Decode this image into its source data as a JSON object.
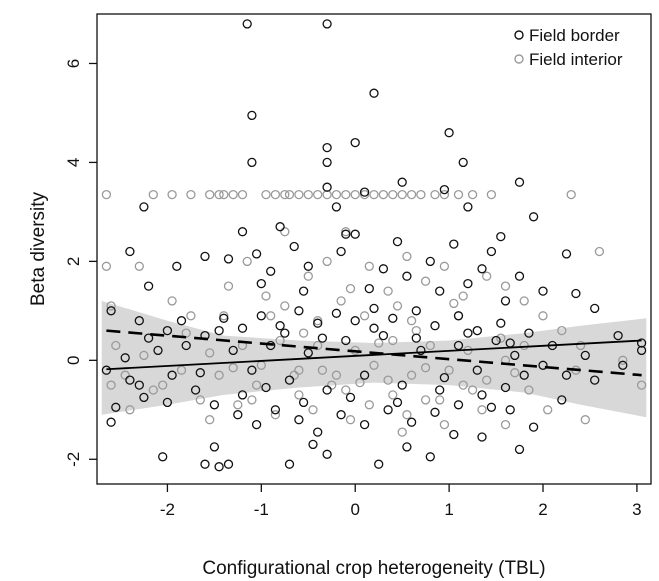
{
  "chart_data": {
    "type": "scatter",
    "title": "",
    "xlabel": "Configurational crop heterogeneity (TBL)",
    "ylabel": "Beta diversity",
    "xlim": [
      -2.75,
      3.15
    ],
    "ylim": [
      -2.5,
      7.0
    ],
    "x_ticks": [
      "-2",
      "-1",
      "0",
      "1",
      "2",
      "3"
    ],
    "y_ticks": [
      "-2",
      "0",
      "2",
      "4",
      "6"
    ],
    "legend": {
      "placement": "top-right",
      "entries": [
        {
          "label": "Field border",
          "color": "#111111"
        },
        {
          "label": "Field interior",
          "color": "#9a9a9a"
        }
      ]
    },
    "series": [
      {
        "name": "Field border",
        "color": "#111111",
        "fit_line": {
          "style": "solid",
          "x": [
            -2.65,
            3.05
          ],
          "y": [
            -0.18,
            0.4
          ]
        },
        "points": [
          [
            -1.15,
            6.8
          ],
          [
            -0.3,
            6.8
          ],
          [
            0.2,
            5.4
          ],
          [
            -1.1,
            4.95
          ],
          [
            1.0,
            4.6
          ],
          [
            0.0,
            4.4
          ],
          [
            -0.3,
            4.3
          ],
          [
            -1.1,
            4.0
          ],
          [
            -0.3,
            4.0
          ],
          [
            1.15,
            4.0
          ],
          [
            1.75,
            3.6
          ],
          [
            0.5,
            3.6
          ],
          [
            -0.3,
            3.5
          ],
          [
            0.1,
            3.4
          ],
          [
            0.95,
            3.45
          ],
          [
            1.2,
            3.1
          ],
          [
            -2.25,
            3.1
          ],
          [
            -1.2,
            2.6
          ],
          [
            -0.8,
            2.7
          ],
          [
            -0.1,
            2.55
          ],
          [
            0.0,
            2.55
          ],
          [
            1.55,
            2.5
          ],
          [
            1.9,
            2.9
          ],
          [
            2.25,
            2.15
          ],
          [
            -2.4,
            2.2
          ],
          [
            -1.35,
            2.05
          ],
          [
            -1.05,
            2.15
          ],
          [
            -0.15,
            2.2
          ],
          [
            0.8,
            2.0
          ],
          [
            1.05,
            2.35
          ],
          [
            -0.5,
            1.9
          ],
          [
            0.3,
            1.85
          ],
          [
            1.35,
            1.85
          ],
          [
            1.75,
            1.7
          ],
          [
            -1.9,
            1.9
          ],
          [
            -1.6,
            2.1
          ],
          [
            -0.9,
            1.8
          ],
          [
            0.55,
            1.7
          ],
          [
            1.2,
            1.55
          ],
          [
            2.0,
            1.4
          ],
          [
            -2.2,
            1.5
          ],
          [
            -1.0,
            1.55
          ],
          [
            -0.55,
            1.4
          ],
          [
            0.15,
            1.45
          ],
          [
            0.9,
            1.4
          ],
          [
            1.6,
            1.2
          ],
          [
            2.35,
            1.35
          ],
          [
            3.05,
            0.35
          ],
          [
            2.55,
            1.05
          ],
          [
            2.8,
            0.5
          ],
          [
            -2.6,
            1.0
          ],
          [
            -2.3,
            0.8
          ],
          [
            -2.0,
            0.6
          ],
          [
            -2.55,
            -0.95
          ],
          [
            -2.6,
            -1.25
          ],
          [
            -2.25,
            -0.75
          ],
          [
            -2.05,
            -1.95
          ],
          [
            -1.6,
            -2.1
          ],
          [
            -1.45,
            -2.15
          ],
          [
            -1.35,
            -2.1
          ],
          [
            -1.5,
            -1.75
          ],
          [
            -0.7,
            -2.1
          ],
          [
            -0.3,
            -1.9
          ],
          [
            -0.45,
            -1.7
          ],
          [
            0.25,
            -2.1
          ],
          [
            0.8,
            -1.95
          ],
          [
            0.55,
            -1.75
          ],
          [
            1.05,
            -1.5
          ],
          [
            1.35,
            -1.55
          ],
          [
            1.75,
            -1.8
          ],
          [
            1.9,
            -1.35
          ],
          [
            1.65,
            -1.0
          ],
          [
            2.2,
            -0.8
          ],
          [
            2.55,
            -0.4
          ],
          [
            3.05,
            0.2
          ],
          [
            2.85,
            -0.1
          ],
          [
            2.45,
            0.1
          ],
          [
            2.1,
            0.3
          ],
          [
            1.85,
            0.55
          ],
          [
            1.55,
            0.75
          ],
          [
            1.3,
            0.6
          ],
          [
            1.1,
            0.9
          ],
          [
            0.85,
            0.7
          ],
          [
            0.65,
            1.0
          ],
          [
            0.4,
            0.85
          ],
          [
            0.2,
            1.05
          ],
          [
            0.0,
            0.8
          ],
          [
            -0.2,
            0.95
          ],
          [
            -0.4,
            0.75
          ],
          [
            -0.6,
            1.0
          ],
          [
            -0.8,
            0.7
          ],
          [
            -1.0,
            0.9
          ],
          [
            -1.2,
            0.65
          ],
          [
            -1.4,
            0.85
          ],
          [
            -1.6,
            0.5
          ],
          [
            -1.8,
            0.3
          ],
          [
            -2.1,
            0.2
          ],
          [
            -2.45,
            0.05
          ],
          [
            -2.65,
            -0.2
          ],
          [
            -2.3,
            -0.5
          ],
          [
            -1.95,
            -0.3
          ],
          [
            -1.7,
            -0.6
          ],
          [
            -1.5,
            -0.9
          ],
          [
            -1.25,
            -1.1
          ],
          [
            -1.05,
            -1.3
          ],
          [
            -0.85,
            -1.0
          ],
          [
            -0.6,
            -1.2
          ],
          [
            -0.4,
            -1.45
          ],
          [
            -0.15,
            -1.1
          ],
          [
            0.1,
            -1.3
          ],
          [
            0.35,
            -1.0
          ],
          [
            0.6,
            -1.25
          ],
          [
            0.85,
            -1.05
          ],
          [
            1.1,
            -0.9
          ],
          [
            1.35,
            -0.7
          ],
          [
            1.6,
            -0.55
          ],
          [
            1.8,
            -0.3
          ],
          [
            2.0,
            -0.1
          ],
          [
            2.25,
            -0.3
          ],
          [
            -1.3,
            0.2
          ],
          [
            -1.1,
            -0.2
          ],
          [
            -0.9,
            0.3
          ],
          [
            -0.7,
            -0.4
          ],
          [
            -0.5,
            0.15
          ],
          [
            -0.3,
            -0.6
          ],
          [
            -0.1,
            0.4
          ],
          [
            0.1,
            -0.3
          ],
          [
            0.3,
            0.5
          ],
          [
            0.5,
            -0.5
          ],
          [
            0.7,
            0.2
          ],
          [
            0.9,
            -0.6
          ],
          [
            1.1,
            0.3
          ],
          [
            1.3,
            -0.2
          ],
          [
            1.5,
            0.4
          ],
          [
            1.7,
            0.1
          ],
          [
            -1.45,
            0.6
          ],
          [
            -1.2,
            -0.7
          ],
          [
            -0.95,
            -0.55
          ],
          [
            -0.75,
            0.55
          ],
          [
            -0.55,
            -0.85
          ],
          [
            -0.35,
            0.45
          ],
          [
            -0.05,
            -0.75
          ],
          [
            0.2,
            0.65
          ],
          [
            0.45,
            -0.85
          ],
          [
            0.65,
            0.45
          ],
          [
            0.95,
            -0.35
          ],
          [
            1.2,
            0.55
          ],
          [
            1.45,
            -0.95
          ],
          [
            1.65,
            0.35
          ],
          [
            -1.65,
            -0.25
          ],
          [
            -1.85,
            0.8
          ],
          [
            -2.0,
            -0.85
          ],
          [
            -2.2,
            0.45
          ],
          [
            -2.4,
            -0.4
          ],
          [
            -0.65,
            2.3
          ],
          [
            0.45,
            2.4
          ],
          [
            -0.2,
            3.1
          ],
          [
            1.45,
            2.2
          ]
        ]
      },
      {
        "name": "Field interior",
        "color": "#9a9a9a",
        "fit_line": {
          "style": "dashed",
          "x": [
            -2.65,
            3.05
          ],
          "y": [
            0.6,
            -0.3
          ]
        },
        "points": [
          [
            -2.65,
            3.35
          ],
          [
            -2.15,
            3.35
          ],
          [
            -1.95,
            3.35
          ],
          [
            -1.75,
            3.35
          ],
          [
            -1.55,
            3.35
          ],
          [
            -1.45,
            3.35
          ],
          [
            -1.4,
            3.35
          ],
          [
            -1.3,
            3.35
          ],
          [
            -1.2,
            3.35
          ],
          [
            -0.95,
            3.35
          ],
          [
            -0.85,
            3.35
          ],
          [
            -0.75,
            3.35
          ],
          [
            -0.7,
            3.35
          ],
          [
            -0.6,
            3.35
          ],
          [
            -0.5,
            3.35
          ],
          [
            -0.4,
            3.35
          ],
          [
            -0.3,
            3.35
          ],
          [
            -0.2,
            3.35
          ],
          [
            -0.1,
            3.35
          ],
          [
            0.0,
            3.35
          ],
          [
            0.1,
            3.35
          ],
          [
            0.2,
            3.35
          ],
          [
            0.3,
            3.35
          ],
          [
            0.4,
            3.35
          ],
          [
            0.5,
            3.35
          ],
          [
            0.6,
            3.35
          ],
          [
            0.7,
            3.35
          ],
          [
            0.85,
            3.35
          ],
          [
            0.95,
            3.35
          ],
          [
            1.1,
            3.35
          ],
          [
            1.25,
            3.35
          ],
          [
            1.45,
            3.35
          ],
          [
            2.3,
            3.35
          ],
          [
            -2.65,
            1.9
          ],
          [
            -2.3,
            1.9
          ],
          [
            -2.6,
            1.1
          ],
          [
            -2.55,
            0.3
          ],
          [
            -2.6,
            -0.5
          ],
          [
            -2.4,
            -1.0
          ],
          [
            -2.15,
            -0.6
          ],
          [
            -1.95,
            1.2
          ],
          [
            -1.75,
            0.9
          ],
          [
            -1.55,
            -1.2
          ],
          [
            -1.35,
            1.5
          ],
          [
            -1.15,
            2.0
          ],
          [
            -0.95,
            1.3
          ],
          [
            -0.75,
            2.6
          ],
          [
            -0.5,
            1.7
          ],
          [
            -0.3,
            2.0
          ],
          [
            -0.1,
            2.6
          ],
          [
            0.15,
            1.9
          ],
          [
            0.35,
            1.4
          ],
          [
            0.55,
            2.1
          ],
          [
            0.75,
            1.6
          ],
          [
            0.95,
            1.9
          ],
          [
            1.15,
            1.3
          ],
          [
            1.4,
            1.7
          ],
          [
            1.6,
            1.5
          ],
          [
            1.8,
            1.2
          ],
          [
            2.0,
            0.9
          ],
          [
            2.2,
            0.6
          ],
          [
            2.4,
            0.3
          ],
          [
            2.6,
            2.2
          ],
          [
            2.85,
            0.0
          ],
          [
            3.05,
            -0.5
          ],
          [
            2.35,
            -0.2
          ],
          [
            2.45,
            -1.2
          ],
          [
            2.05,
            -1.0
          ],
          [
            1.85,
            -0.6
          ],
          [
            1.6,
            -1.3
          ],
          [
            1.35,
            -1.0
          ],
          [
            1.15,
            -0.5
          ],
          [
            0.95,
            -1.3
          ],
          [
            0.75,
            -0.8
          ],
          [
            0.55,
            -1.1
          ],
          [
            0.35,
            -0.4
          ],
          [
            0.15,
            -0.9
          ],
          [
            -0.05,
            -1.2
          ],
          [
            -0.25,
            -0.5
          ],
          [
            -0.45,
            -1.0
          ],
          [
            -0.65,
            -0.3
          ],
          [
            -0.85,
            -1.1
          ],
          [
            -1.05,
            -0.5
          ],
          [
            -1.25,
            -0.9
          ],
          [
            -1.45,
            -0.3
          ],
          [
            -1.65,
            -0.8
          ],
          [
            -1.85,
            -0.2
          ],
          [
            -2.05,
            -0.5
          ],
          [
            -2.25,
            0.1
          ],
          [
            -2.45,
            -0.3
          ],
          [
            -1.2,
            0.3
          ],
          [
            -1.0,
            -0.1
          ],
          [
            -0.8,
            0.4
          ],
          [
            -0.6,
            -0.2
          ],
          [
            -0.4,
            0.3
          ],
          [
            -0.2,
            -0.3
          ],
          [
            0.0,
            0.2
          ],
          [
            0.2,
            -0.1
          ],
          [
            0.4,
            0.4
          ],
          [
            0.6,
            -0.3
          ],
          [
            0.8,
            0.3
          ],
          [
            1.0,
            -0.2
          ],
          [
            1.2,
            0.2
          ],
          [
            1.4,
            -0.4
          ],
          [
            1.6,
            0.0
          ],
          [
            1.8,
            0.3
          ],
          [
            -1.4,
            0.9
          ],
          [
            -0.9,
            0.9
          ],
          [
            -0.4,
            0.8
          ],
          [
            0.1,
            0.9
          ],
          [
            0.6,
            0.8
          ],
          [
            1.1,
            0.9
          ],
          [
            -1.1,
            -0.8
          ],
          [
            -0.6,
            -0.7
          ],
          [
            -0.1,
            -0.6
          ],
          [
            0.4,
            -0.7
          ],
          [
            0.9,
            -0.8
          ],
          [
            1.3,
            0.6
          ],
          [
            -0.75,
            1.1
          ],
          [
            -0.15,
            1.2
          ],
          [
            0.45,
            1.1
          ],
          [
            1.05,
            1.15
          ],
          [
            -1.3,
            -0.15
          ],
          [
            -0.35,
            -0.2
          ],
          [
            0.25,
            0.35
          ],
          [
            0.75,
            -0.15
          ],
          [
            1.55,
            0.45
          ],
          [
            -0.55,
            0.55
          ],
          [
            0.05,
            -0.45
          ],
          [
            0.65,
            0.6
          ],
          [
            1.25,
            -0.6
          ],
          [
            -1.55,
            0.15
          ],
          [
            -0.05,
            1.45
          ],
          [
            0.5,
            -1.45
          ],
          [
            1.7,
            -0.25
          ],
          [
            -1.8,
            0.55
          ]
        ]
      }
    ],
    "confidence_band": {
      "color": "#d8d8d8",
      "x": [
        -2.7,
        -2.0,
        -1.4,
        -0.6,
        0.2,
        1.0,
        1.8,
        2.4,
        3.1
      ],
      "upper": [
        1.2,
        0.8,
        0.5,
        0.4,
        0.35,
        0.4,
        0.55,
        0.7,
        0.85
      ],
      "lower": [
        -1.1,
        -0.9,
        -0.7,
        -0.55,
        -0.45,
        -0.5,
        -0.65,
        -0.9,
        -1.15
      ]
    }
  }
}
